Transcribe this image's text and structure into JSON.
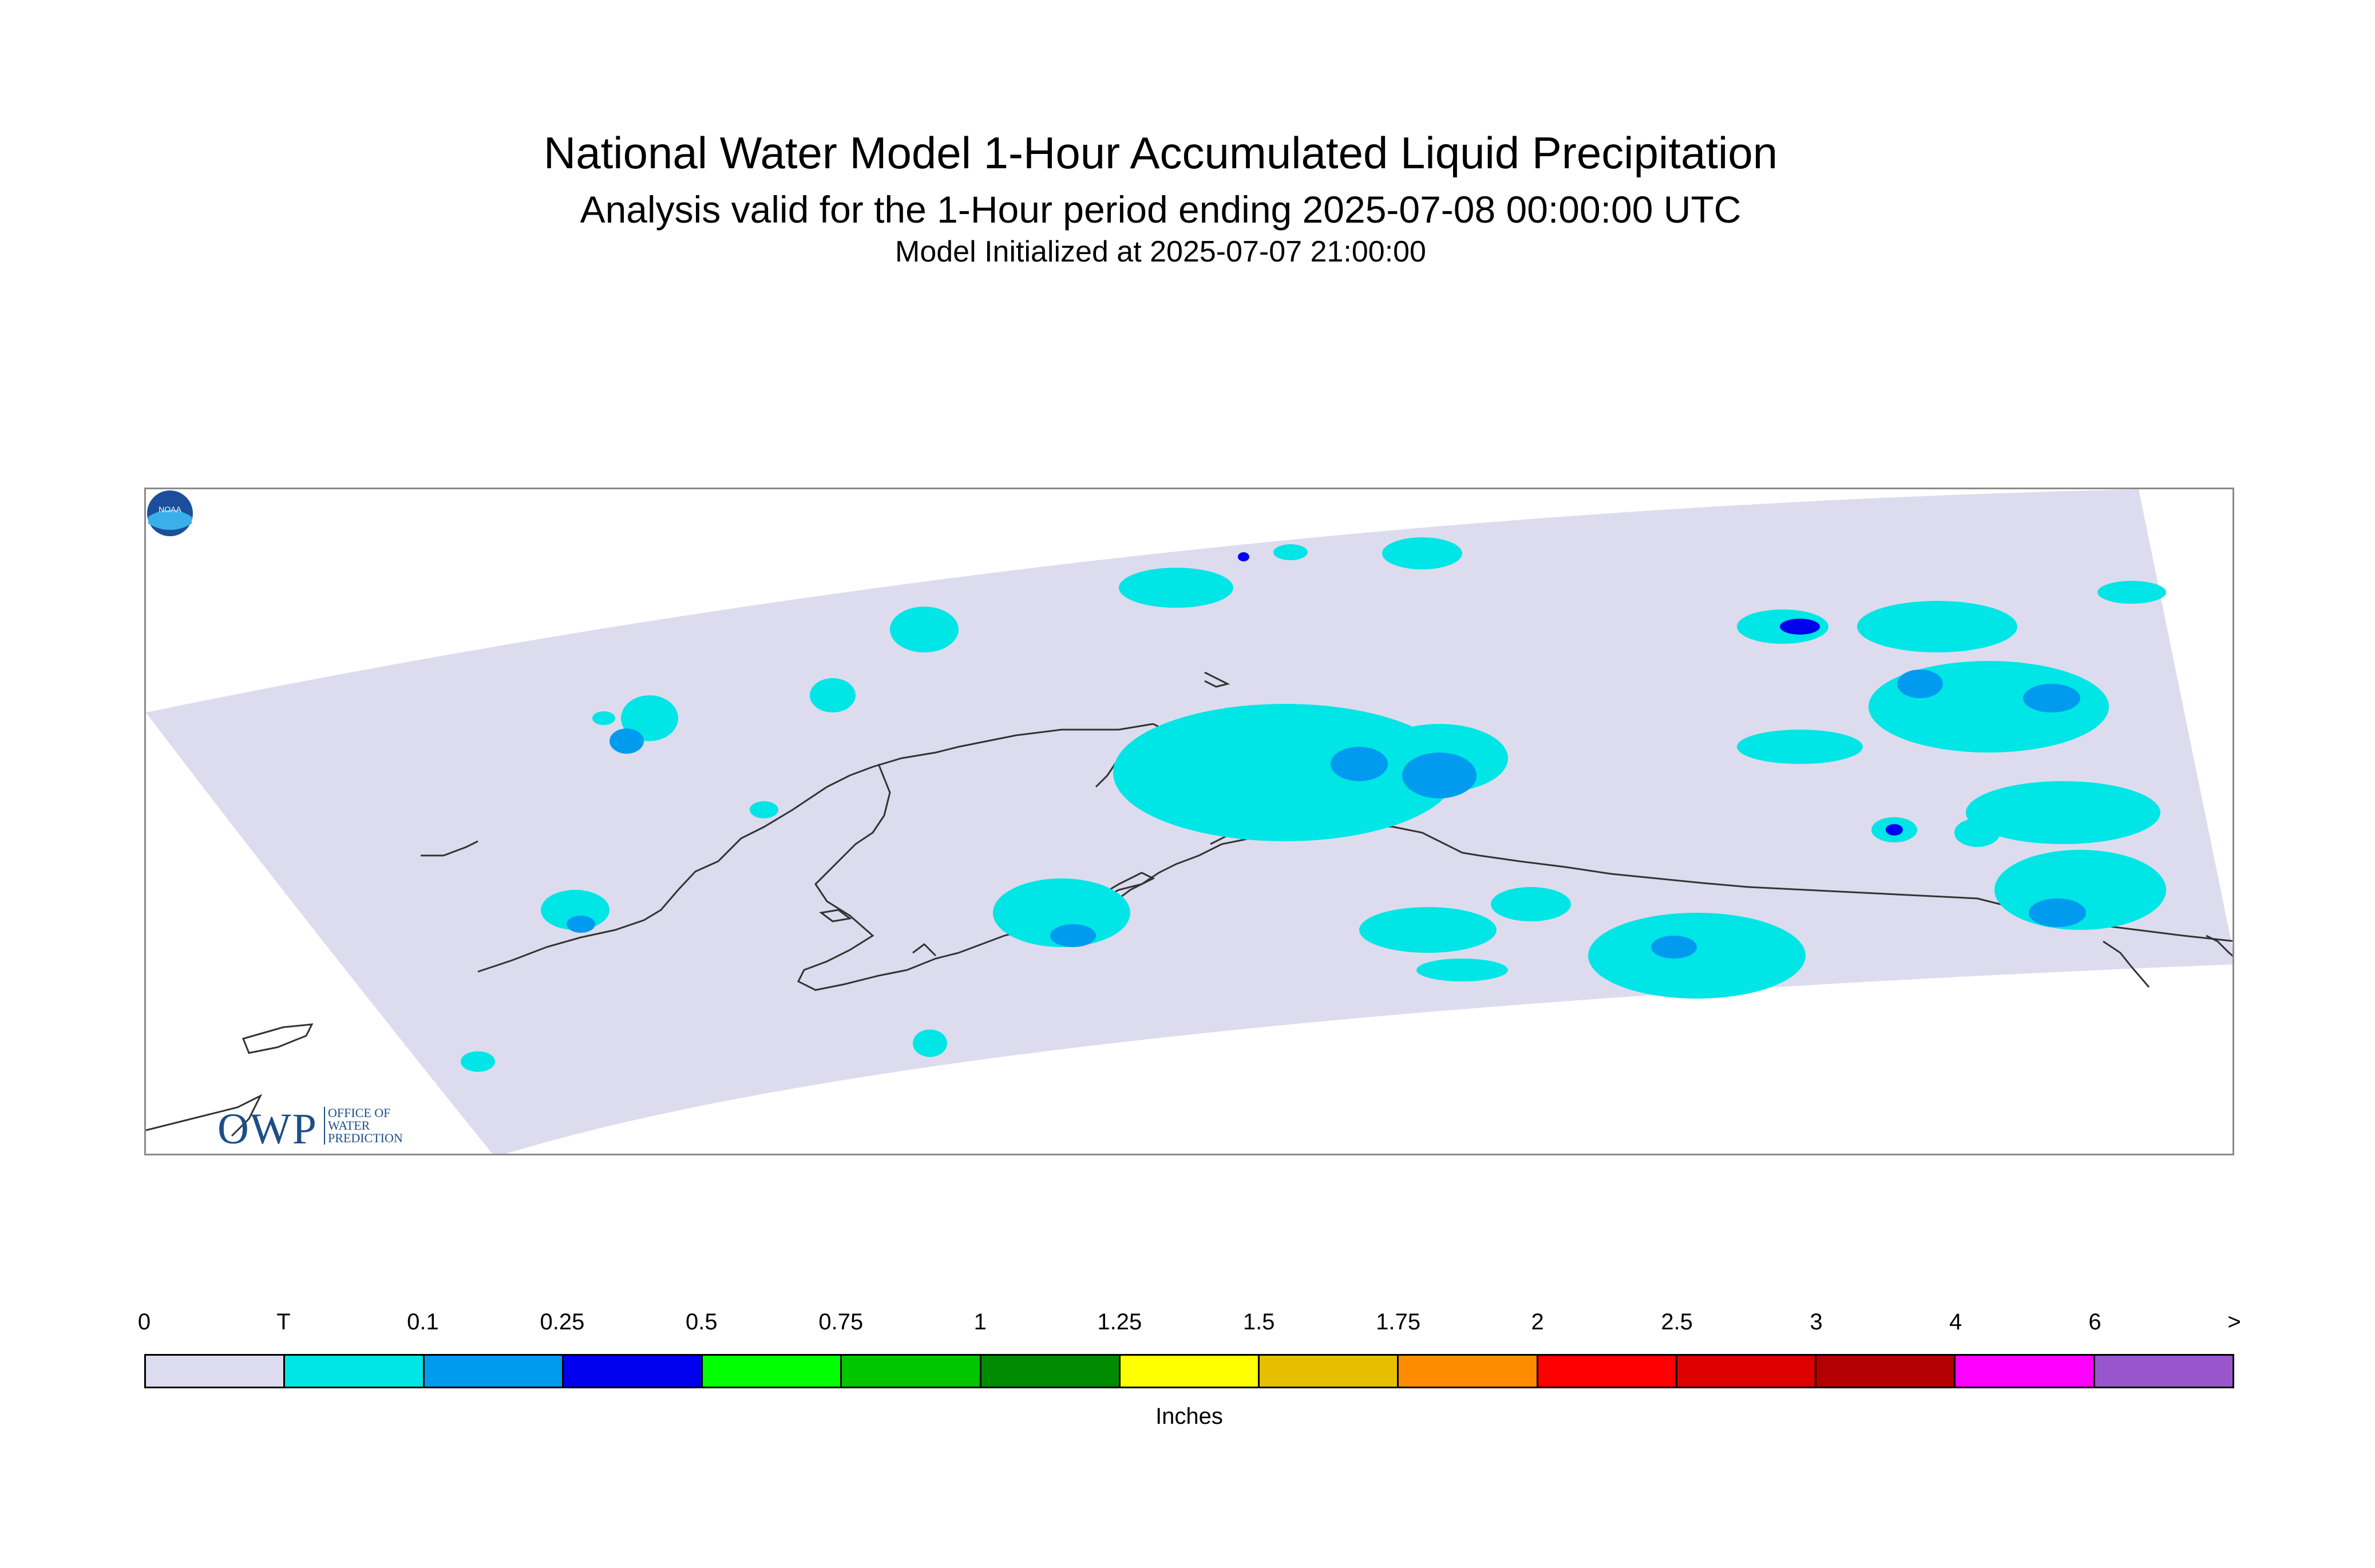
{
  "header": {
    "title": "National Water Model 1-Hour Accumulated Liquid Precipitation",
    "subtitle": "Analysis valid for the 1-Hour period ending 2025-07-08 00:00:00 UTC",
    "init_line": "Model Initialized at 2025-07-07 21:00:00"
  },
  "map": {
    "region": "Alaska",
    "domain_fill_color": "#dcdcee",
    "coastline_color": "#333333",
    "precip_classes_shown": [
      "T",
      "0.1",
      "0.25"
    ]
  },
  "logos": {
    "owp": {
      "text": "OWP",
      "line1": "OFFICE OF",
      "line2": "WATER",
      "line3": "PREDICTION"
    },
    "noaa": {
      "text": "NOAA"
    }
  },
  "legend": {
    "labels": [
      "0",
      "T",
      "0.1",
      "0.25",
      "0.5",
      "0.75",
      "1",
      "1.25",
      "1.5",
      "1.75",
      "2",
      "2.5",
      "3",
      "4",
      "6",
      ">"
    ],
    "colors": [
      "#dcdcee",
      "#00e5e5",
      "#009bee",
      "#0000ee",
      "#00ff00",
      "#00c600",
      "#008c00",
      "#ffff00",
      "#e6bf00",
      "#ff8c00",
      "#ff0000",
      "#dd0000",
      "#b40000",
      "#ff00ff",
      "#9955cc"
    ],
    "units": "Inches"
  }
}
